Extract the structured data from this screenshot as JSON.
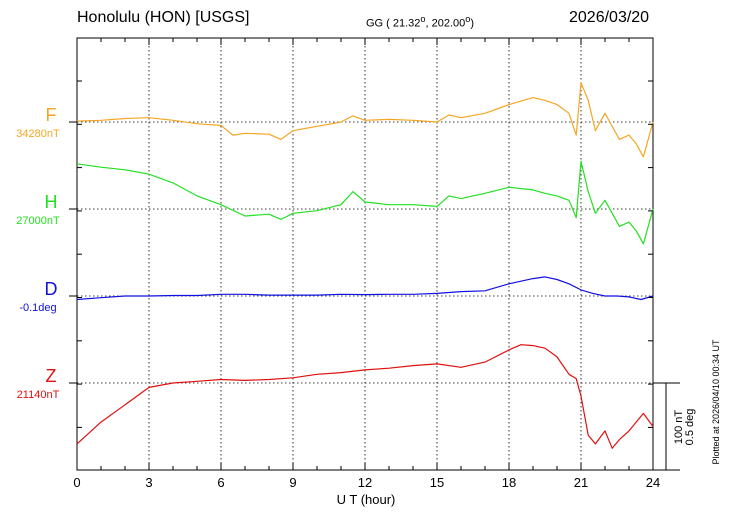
{
  "header": {
    "station": "Honolulu (HON)  [USGS]",
    "coords": "GG ( 21.32°, 202.00°)",
    "date": "2026/03/20"
  },
  "scale": {
    "nt": "100 nT",
    "deg": "0.5 deg"
  },
  "plotted_note": "Plotted at 2026/04/10 00:34 UT",
  "components": [
    {
      "letter": "F",
      "baseline": "34280nT",
      "color": "#f5a623"
    },
    {
      "letter": "H",
      "baseline": "27000nT",
      "color": "#22e022"
    },
    {
      "letter": "D",
      "baseline": "-0.1deg",
      "color": "#1010e0"
    },
    {
      "letter": "Z",
      "baseline": "21140nT",
      "color": "#e01010"
    }
  ],
  "chart_data": {
    "type": "line",
    "xlabel": "U T (hour)",
    "xlim": [
      0,
      24
    ],
    "x_ticks": [
      "0",
      "3",
      "6",
      "9",
      "12",
      "15",
      "18",
      "21",
      "24"
    ],
    "grid": true,
    "scale_bar": "100 nT / 0.5 deg",
    "series": [
      {
        "name": "F",
        "baseline": "34280nT",
        "color": "#f5a623",
        "x": [
          0,
          1,
          2,
          3,
          4,
          5,
          6,
          6.5,
          7,
          8,
          8.5,
          9,
          10,
          11,
          11.5,
          12,
          13,
          14,
          15,
          15.5,
          16,
          17,
          18,
          19,
          19.5,
          20,
          20.5,
          20.8,
          21,
          21.3,
          21.6,
          22,
          22.3,
          22.6,
          23,
          23.3,
          23.6,
          24
        ],
        "y": [
          1,
          2,
          4,
          5,
          2,
          -2,
          -4,
          -15,
          -13,
          -14,
          -20,
          -10,
          -5,
          0,
          7,
          2,
          3,
          2,
          0,
          8,
          5,
          10,
          20,
          28,
          25,
          20,
          10,
          -15,
          45,
          25,
          -10,
          10,
          -5,
          -20,
          -15,
          -25,
          -40,
          0
        ]
      },
      {
        "name": "H",
        "baseline": "27000nT",
        "color": "#22e022",
        "x": [
          0,
          1,
          2,
          3,
          4,
          5,
          5.5,
          6,
          7,
          8,
          8.5,
          9,
          10,
          11,
          11.5,
          12,
          13,
          14,
          15,
          15.5,
          16,
          17,
          18,
          19,
          19.5,
          20,
          20.5,
          20.8,
          21,
          21.3,
          21.6,
          22,
          22.3,
          22.6,
          23,
          23.3,
          23.6,
          24
        ],
        "y": [
          52,
          48,
          45,
          40,
          30,
          15,
          10,
          5,
          -8,
          -6,
          -12,
          -5,
          -2,
          5,
          20,
          8,
          5,
          5,
          3,
          15,
          12,
          18,
          25,
          22,
          18,
          15,
          10,
          -10,
          55,
          20,
          -5,
          10,
          -5,
          -20,
          -15,
          -25,
          -40,
          0
        ]
      },
      {
        "name": "D",
        "baseline": "-0.1deg",
        "color": "#1010e0",
        "x": [
          0,
          1,
          2,
          3,
          4,
          5,
          6,
          7,
          8,
          9,
          10,
          11,
          12,
          13,
          14,
          15,
          16,
          17,
          18,
          19,
          19.5,
          20,
          20.5,
          21,
          21.5,
          22,
          22.5,
          23,
          23.5,
          24
        ],
        "y": [
          -0.02,
          -0.01,
          0,
          0,
          0.003,
          0.003,
          0.01,
          0.01,
          0.005,
          0.005,
          0.005,
          0.01,
          0.008,
          0.01,
          0.01,
          0.015,
          0.025,
          0.03,
          0.07,
          0.1,
          0.11,
          0.095,
          0.07,
          0.035,
          0.015,
          0.0,
          0.0,
          -0.005,
          -0.02,
          0.0
        ]
      },
      {
        "name": "Z",
        "baseline": "21140nT",
        "color": "#e01010",
        "x": [
          0,
          1,
          2,
          3,
          4,
          5,
          6,
          7,
          8,
          9,
          10,
          11,
          12,
          13,
          14,
          15,
          16,
          17,
          18,
          18.5,
          19,
          19.5,
          20,
          20.5,
          20.8,
          21,
          21.3,
          21.6,
          22,
          22.3,
          22.6,
          23,
          23.3,
          23.6,
          24
        ],
        "y": [
          -70,
          -45,
          -25,
          -5,
          0,
          2,
          4,
          3,
          4,
          6,
          10,
          12,
          15,
          17,
          20,
          22,
          18,
          24,
          38,
          44,
          43,
          40,
          30,
          10,
          5,
          -15,
          -60,
          -70,
          -55,
          -75,
          -65,
          -55,
          -45,
          -35,
          -50
        ]
      }
    ]
  }
}
